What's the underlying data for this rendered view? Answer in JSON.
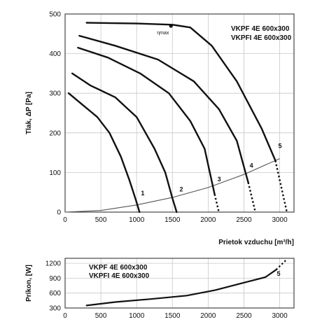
{
  "chart_data": [
    {
      "type": "line",
      "xlabel": "Prietok vzduchu [m³/h]",
      "ylabel": "Tlak, ΔP [Pa]",
      "xlim": [
        0,
        3200
      ],
      "ylim": [
        0,
        500
      ],
      "x_ticks": [
        "0",
        "500",
        "1000",
        "1500",
        "2000",
        "2500",
        "3000"
      ],
      "y_ticks": [
        "0",
        "100",
        "200",
        "300",
        "400",
        "500"
      ],
      "grid": true,
      "model_labels": [
        "VKPF 4E 600x300",
        "VKPFI 4E 600x300"
      ],
      "series": [
        {
          "name": "1",
          "x": [
            50,
            250,
            450,
            620,
            780,
            900,
            990,
            1040
          ],
          "y": [
            300,
            270,
            240,
            200,
            140,
            80,
            30,
            0
          ],
          "dashed_from_x": null
        },
        {
          "name": "2",
          "x": [
            100,
            350,
            700,
            1000,
            1250,
            1400,
            1500,
            1560
          ],
          "y": [
            350,
            320,
            290,
            240,
            160,
            100,
            35,
            0
          ],
          "dashed_from_x": null
        },
        {
          "name": "3",
          "x": [
            180,
            600,
            1050,
            1450,
            1750,
            1950,
            2090,
            2150
          ],
          "y": [
            415,
            390,
            350,
            300,
            230,
            160,
            45,
            0
          ],
          "dashed_from_x": 2090
        },
        {
          "name": "4",
          "x": [
            200,
            700,
            1300,
            1800,
            2150,
            2400,
            2560,
            2660
          ],
          "y": [
            445,
            420,
            385,
            330,
            260,
            180,
            75,
            0
          ],
          "dashed_from_x": 2560
        },
        {
          "name": "5",
          "x": [
            300,
            1000,
            1500,
            1750,
            2050,
            2400,
            2750,
            2940,
            3100
          ],
          "y": [
            478,
            476,
            473,
            466,
            420,
            330,
            210,
            130,
            0
          ],
          "dashed_from_x": 2950
        }
      ],
      "system_curve": {
        "x": [
          0,
          500,
          1000,
          1500,
          2000,
          2500,
          3000
        ],
        "y": [
          0,
          4,
          18,
          37,
          62,
          95,
          135
        ]
      },
      "annotations": [
        {
          "text": "ηmax",
          "x": 1480,
          "y": 470
        }
      ]
    },
    {
      "type": "line",
      "xlabel": "",
      "ylabel": "Príkon, [W]",
      "xlim": [
        0,
        3200
      ],
      "ylim": [
        300,
        1300
      ],
      "x_ticks": [
        "0",
        "500",
        "1000",
        "1500",
        "2000",
        "2500",
        "3000"
      ],
      "y_ticks": [
        "300",
        "600",
        "900",
        "1200"
      ],
      "grid": true,
      "model_labels": [
        "VKPF 4E 600x300",
        "VKPFI 4E 600x300"
      ],
      "series": [
        {
          "name": "5",
          "x": [
            300,
            700,
            1200,
            1700,
            2100,
            2500,
            2800,
            2950,
            3100
          ],
          "y": [
            350,
            420,
            480,
            550,
            660,
            810,
            920,
            1070,
            1280
          ],
          "dashed_from_x": 2950
        }
      ]
    }
  ]
}
